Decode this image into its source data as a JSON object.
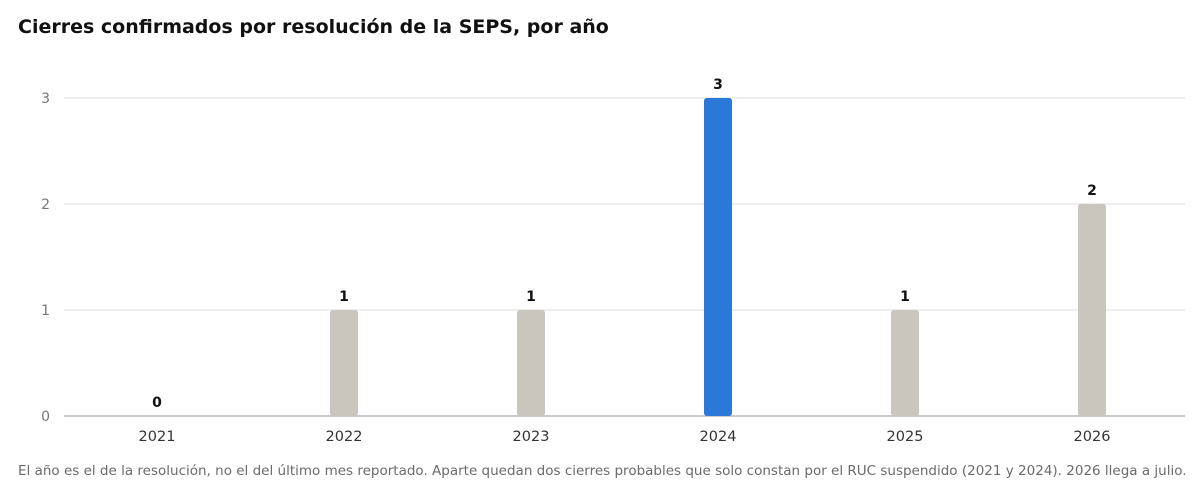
{
  "chart_data": {
    "type": "bar",
    "title": "Cierres confirmados por resolución de la SEPS, por año",
    "xlabel": "",
    "ylabel": "",
    "categories": [
      "2021",
      "2022",
      "2023",
      "2024",
      "2025",
      "2026"
    ],
    "values": [
      0,
      1,
      1,
      3,
      1,
      2
    ],
    "ylim": [
      0,
      3
    ],
    "yticks": [
      0,
      1,
      2,
      3
    ],
    "grid": true,
    "legend": "none",
    "highlight_category": "2024",
    "colors": {
      "default_bar": "#c8c6bd",
      "highlight_bar": "#2a78d8",
      "grid": "#dddddd",
      "axis": "#b8b8b8"
    }
  },
  "footnote": "El año es el de la resolución, no el del último mes reportado. Aparte quedan dos cierres probables que solo constan por el RUC suspendido (2021 y 2024). 2026 llega a julio."
}
